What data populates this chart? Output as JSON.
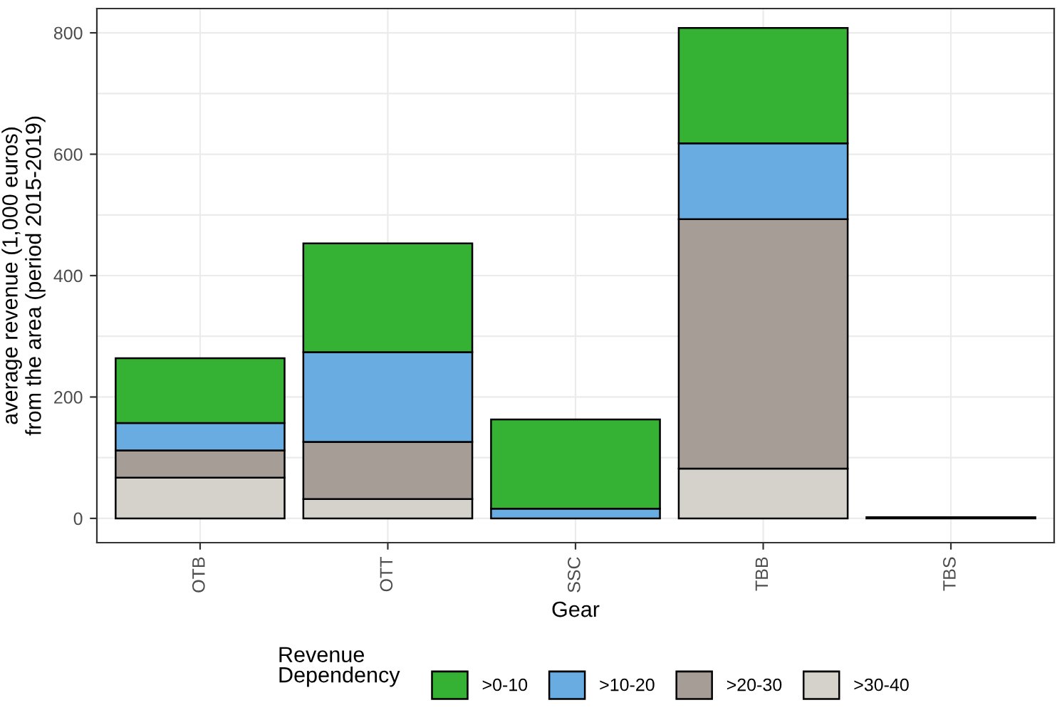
{
  "chart_data": {
    "type": "bar",
    "stacked": true,
    "xlabel": "Gear",
    "ylabel": "average revenue (1,000 euros)\nfrom the area (period 2015-2019)",
    "legend_title": "Revenue\nDependency",
    "legend": "bottom",
    "grid": true,
    "categories": [
      "OTB",
      "OTT",
      "SSC",
      "TBB",
      "TBS"
    ],
    "ylim": [
      -40,
      840
    ],
    "yticks": [
      0,
      200,
      400,
      600,
      800
    ],
    "series": [
      {
        "name": ">30-40",
        "color": "#d4d2ca",
        "values": [
          67,
          32,
          0,
          82,
          0
        ]
      },
      {
        "name": ">20-30",
        "color": "#a59d96",
        "values": [
          45,
          94,
          0,
          411,
          0
        ]
      },
      {
        "name": ">10-20",
        "color": "#69ace2",
        "values": [
          45,
          148,
          16,
          125,
          0
        ]
      },
      {
        "name": ">0-10",
        "color": "#35b234",
        "values": [
          107,
          179,
          147,
          190,
          2
        ]
      }
    ]
  }
}
